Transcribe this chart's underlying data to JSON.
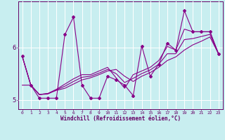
{
  "xlabel": "Windchill (Refroidissement éolien,°C)",
  "x": [
    0,
    1,
    2,
    3,
    4,
    5,
    6,
    7,
    8,
    9,
    10,
    11,
    12,
    13,
    14,
    15,
    16,
    17,
    18,
    19,
    20,
    21,
    22,
    23
  ],
  "line_main": [
    5.83,
    5.28,
    5.03,
    5.03,
    5.03,
    6.25,
    6.58,
    5.28,
    5.03,
    5.03,
    5.45,
    5.38,
    5.28,
    5.08,
    6.03,
    5.45,
    5.68,
    6.08,
    5.95,
    6.7,
    6.3,
    6.3,
    6.3,
    5.88
  ],
  "line_reg1": [
    5.28,
    5.28,
    5.1,
    5.12,
    5.18,
    5.22,
    5.3,
    5.38,
    5.42,
    5.48,
    5.55,
    5.58,
    5.45,
    5.35,
    5.45,
    5.52,
    5.62,
    5.75,
    5.82,
    5.95,
    6.05,
    6.12,
    6.2,
    5.88
  ],
  "line_reg2": [
    5.83,
    5.28,
    5.1,
    5.12,
    5.2,
    5.3,
    5.4,
    5.48,
    5.48,
    5.55,
    5.62,
    5.42,
    5.22,
    5.48,
    5.55,
    5.62,
    5.75,
    6.02,
    5.95,
    6.35,
    6.3,
    6.3,
    6.3,
    5.88
  ],
  "line_reg3": [
    5.83,
    5.28,
    5.1,
    5.11,
    5.19,
    5.26,
    5.35,
    5.43,
    5.45,
    5.51,
    5.58,
    5.5,
    5.33,
    5.41,
    5.5,
    5.57,
    5.68,
    5.88,
    5.88,
    6.15,
    6.17,
    6.21,
    6.25,
    5.88
  ],
  "color": "#880088",
  "bg_color": "#c8eef0",
  "grid_color": "#ffffff",
  "ylim": [
    4.82,
    6.88
  ],
  "yticks": [
    5.0,
    6.0
  ],
  "xlim": [
    -0.5,
    23.5
  ]
}
